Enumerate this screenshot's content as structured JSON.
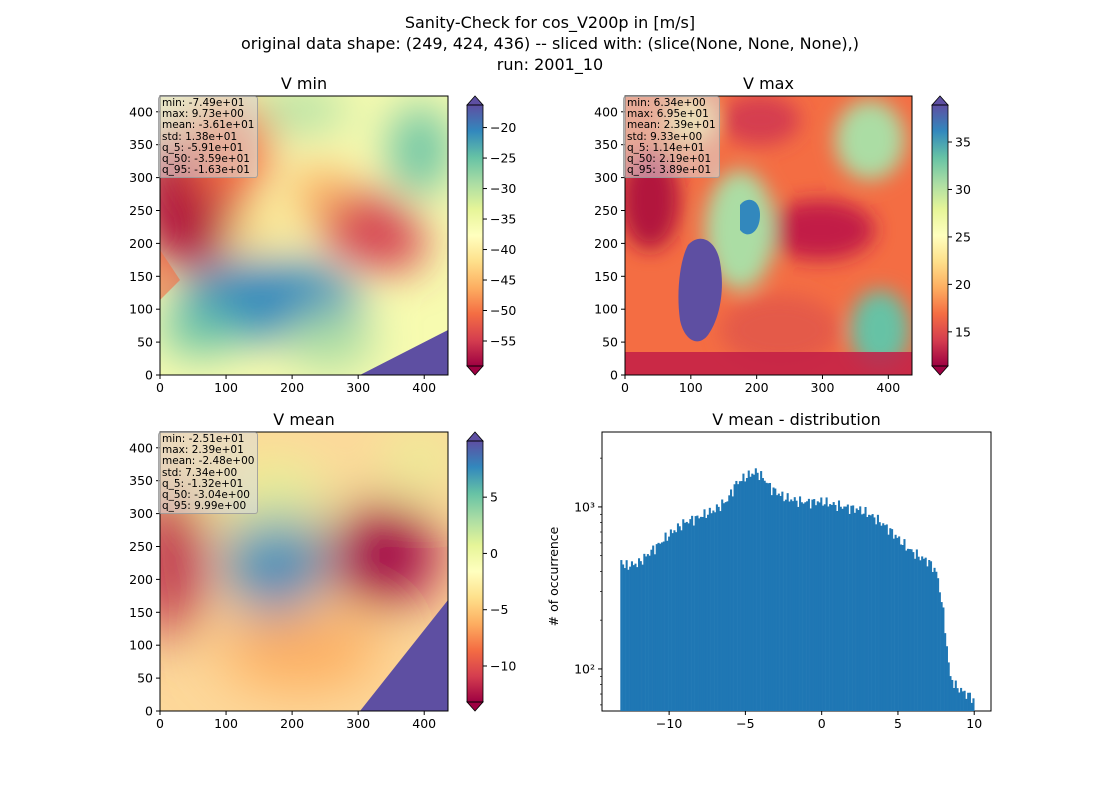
{
  "figure": {
    "title_lines": [
      "Sanity-Check for cos_V200p in [m/s]",
      "original data shape: (249, 424, 436) -- sliced with: (slice(None, None, None),)",
      "run: 2001_10"
    ]
  },
  "chart_data": [
    {
      "type": "heatmap",
      "id": "vmin",
      "title": "V min",
      "xlim": [
        0,
        436
      ],
      "ylim": [
        0,
        424
      ],
      "xticks": [
        0,
        100,
        200,
        300,
        400
      ],
      "yticks": [
        0,
        50,
        100,
        150,
        200,
        250,
        300,
        350,
        400
      ],
      "colormap": "Spectral",
      "colorbar": {
        "min": -59.1,
        "max": -16.3,
        "ticks": [
          -55,
          -50,
          -45,
          -40,
          -35,
          -30,
          -25,
          -20
        ],
        "extend": "both"
      },
      "stats": [
        "min: -7.49e+01",
        "max: 9.73e+00",
        "mean: -3.61e+01",
        "std: 1.38e+01",
        "q_5: -5.91e+01",
        "q_50: -3.59e+01",
        "q_95: -1.63e+01"
      ]
    },
    {
      "type": "heatmap",
      "id": "vmax",
      "title": "V max",
      "xlim": [
        0,
        436
      ],
      "ylim": [
        0,
        424
      ],
      "xticks": [
        0,
        100,
        200,
        300,
        400
      ],
      "yticks": [
        0,
        50,
        100,
        150,
        200,
        250,
        300,
        350,
        400
      ],
      "colormap": "Spectral",
      "colorbar": {
        "min": 11.4,
        "max": 38.9,
        "ticks": [
          15,
          20,
          25,
          30,
          35
        ],
        "extend": "both"
      },
      "stats": [
        "min: 6.34e+00",
        "max: 6.95e+01",
        "mean: 2.39e+01",
        "std: 9.33e+00",
        "q_5: 1.14e+01",
        "q_50: 2.19e+01",
        "q_95: 3.89e+01"
      ]
    },
    {
      "type": "heatmap",
      "id": "vmean",
      "title": "V mean",
      "xlim": [
        0,
        436
      ],
      "ylim": [
        0,
        424
      ],
      "xticks": [
        0,
        100,
        200,
        300,
        400
      ],
      "yticks": [
        0,
        50,
        100,
        150,
        200,
        250,
        300,
        350,
        400
      ],
      "colormap": "Spectral",
      "colorbar": {
        "min": -13.2,
        "max": 9.99,
        "ticks": [
          -10,
          -5,
          0,
          5
        ],
        "extend": "both"
      },
      "stats": [
        "min: -2.51e+01",
        "max: 2.39e+01",
        "mean: -2.48e+00",
        "std: 7.34e+00",
        "q_5: -1.32e+01",
        "q_50: -3.04e+00",
        "q_95: 9.99e+00"
      ]
    },
    {
      "type": "bar",
      "id": "hist",
      "title": "V mean - distribution",
      "ylabel": "# of occurrence",
      "xscale": "linear",
      "yscale": "log",
      "xlim": [
        -14.4,
        11.1
      ],
      "ylim": [
        55,
        2900
      ],
      "xticks": [
        -10,
        -5,
        0,
        5,
        10
      ],
      "yticks": [
        100,
        1000
      ],
      "ytick_labels": [
        "10²",
        "10³"
      ],
      "color": "#1f77b4",
      "anchors": [
        [
          -13.2,
          480
        ],
        [
          -12.9,
          430
        ],
        [
          -12.0,
          450
        ],
        [
          -11.3,
          520
        ],
        [
          -10.5,
          610
        ],
        [
          -9.8,
          700
        ],
        [
          -9.0,
          800
        ],
        [
          -8.0,
          870
        ],
        [
          -7.0,
          960
        ],
        [
          -6.2,
          1100
        ],
        [
          -5.6,
          1400
        ],
        [
          -4.9,
          1550
        ],
        [
          -4.3,
          1650
        ],
        [
          -3.8,
          1500
        ],
        [
          -3.3,
          1300
        ],
        [
          -2.5,
          1150
        ],
        [
          -1.5,
          1080
        ],
        [
          -0.8,
          1070
        ],
        [
          0.0,
          1080
        ],
        [
          0.8,
          1030
        ],
        [
          1.5,
          1000
        ],
        [
          2.5,
          960
        ],
        [
          3.3,
          880
        ],
        [
          4.2,
          760
        ],
        [
          5.0,
          640
        ],
        [
          5.6,
          560
        ],
        [
          6.3,
          500
        ],
        [
          7.0,
          460
        ],
        [
          7.5,
          400
        ],
        [
          7.8,
          290
        ],
        [
          8.0,
          210
        ],
        [
          8.2,
          140
        ],
        [
          8.4,
          90
        ],
        [
          8.8,
          78
        ],
        [
          9.3,
          72
        ],
        [
          9.9,
          66
        ],
        [
          10.0,
          62
        ]
      ]
    }
  ]
}
